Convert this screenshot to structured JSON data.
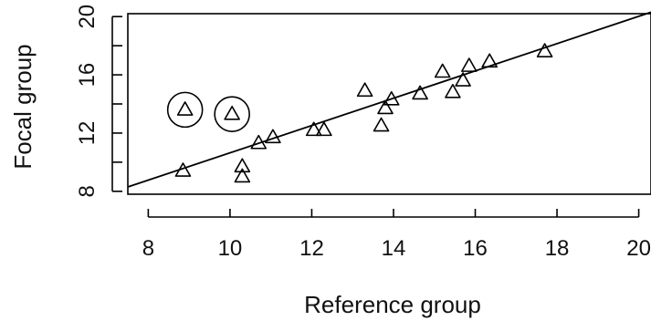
{
  "chart_data": {
    "type": "scatter",
    "title": "",
    "xlabel": "Reference group",
    "ylabel": "Focal group",
    "xlim": [
      7.5,
      20.3
    ],
    "ylim": [
      7.8,
      20.2
    ],
    "x_ticks": [
      8,
      10,
      12,
      14,
      16,
      18,
      20
    ],
    "x_tick_labels": [
      "8",
      "10",
      "12",
      "14",
      "16",
      "18",
      "20"
    ],
    "y_ticks": [
      8,
      12,
      16,
      20
    ],
    "y_tick_labels": [
      "8",
      "12",
      "16",
      "20"
    ],
    "grid": false,
    "marker": "open-triangle",
    "colors": {
      "axis": "#000000",
      "points": "#000000",
      "background": "#ffffff"
    },
    "points": [
      {
        "x": 8.85,
        "y": 9.4
      },
      {
        "x": 8.9,
        "y": 13.6
      },
      {
        "x": 10.05,
        "y": 13.3
      },
      {
        "x": 10.3,
        "y": 9.7
      },
      {
        "x": 10.3,
        "y": 9.0
      },
      {
        "x": 10.7,
        "y": 11.3
      },
      {
        "x": 11.05,
        "y": 11.7
      },
      {
        "x": 12.05,
        "y": 12.2
      },
      {
        "x": 12.3,
        "y": 12.2
      },
      {
        "x": 13.3,
        "y": 14.9
      },
      {
        "x": 13.7,
        "y": 12.5
      },
      {
        "x": 13.8,
        "y": 13.7
      },
      {
        "x": 13.95,
        "y": 14.3
      },
      {
        "x": 14.65,
        "y": 14.7
      },
      {
        "x": 15.2,
        "y": 16.2
      },
      {
        "x": 15.45,
        "y": 14.8
      },
      {
        "x": 15.7,
        "y": 15.6
      },
      {
        "x": 15.85,
        "y": 16.6
      },
      {
        "x": 16.35,
        "y": 16.9
      },
      {
        "x": 17.7,
        "y": 17.6
      }
    ],
    "circled_points": [
      {
        "x": 8.9,
        "y": 13.6
      },
      {
        "x": 10.05,
        "y": 13.3
      }
    ],
    "line": {
      "x1": 7.5,
      "y1": 8.3,
      "x2": 20.3,
      "y2": 20.3
    }
  }
}
